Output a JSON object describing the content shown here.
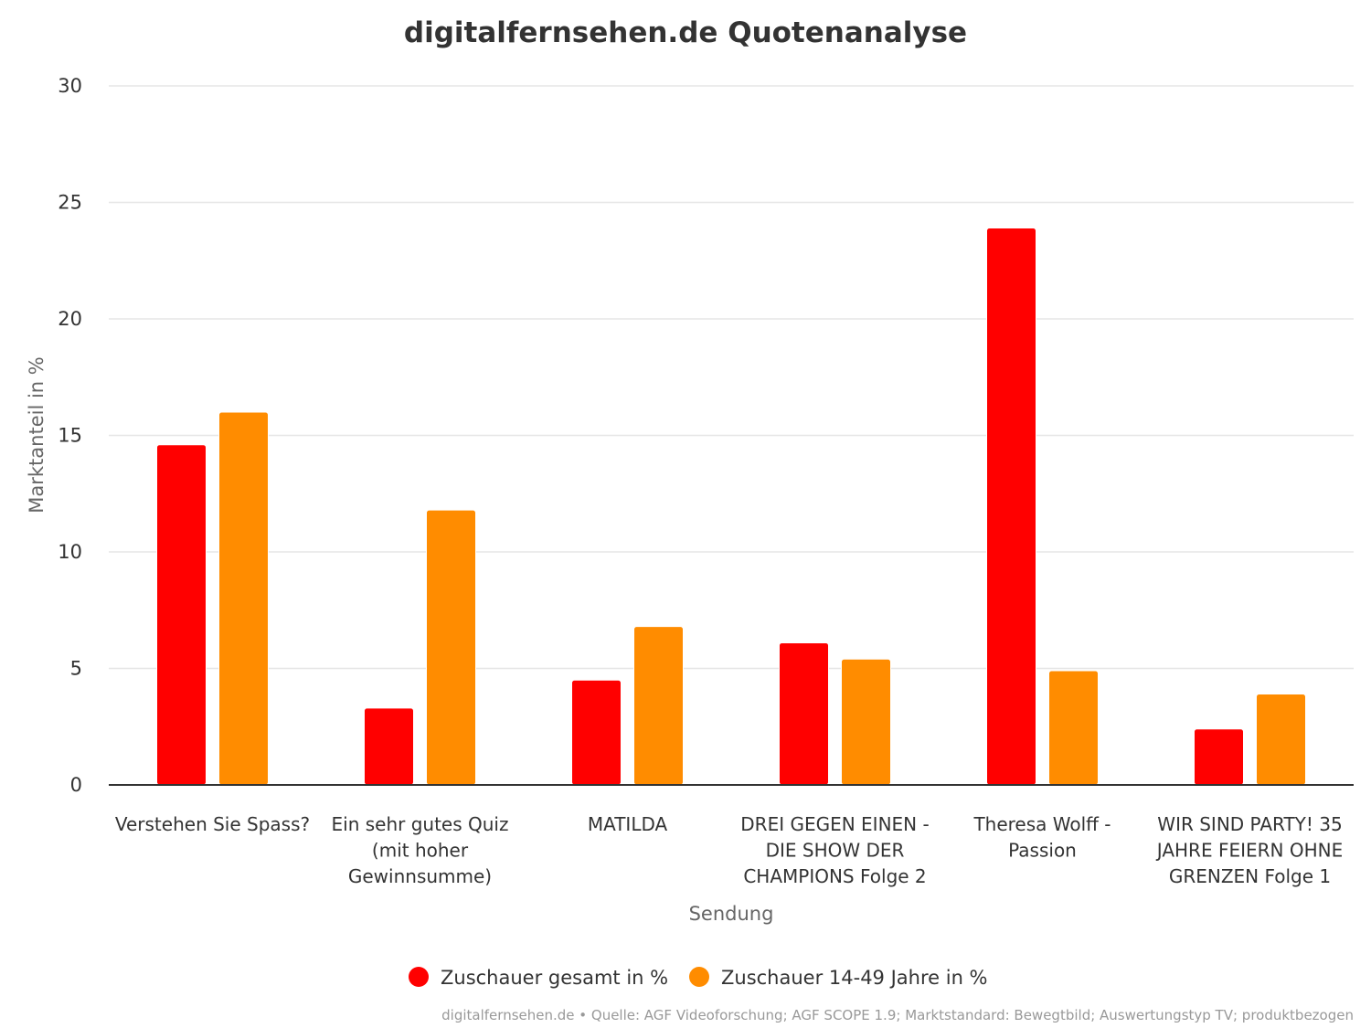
{
  "chart_data": {
    "type": "bar",
    "title": "digitalfernsehen.de Quotenanalyse",
    "xlabel": "Sendung",
    "ylabel": "Marktanteil in %",
    "ylim": [
      0,
      30
    ],
    "yticks": [
      0,
      5,
      10,
      15,
      20,
      25,
      30
    ],
    "grid": true,
    "legend_position": "bottom-center",
    "categories": [
      [
        "Verstehen Sie Spass?"
      ],
      [
        "Ein sehr gutes Quiz",
        "(mit hoher",
        "Gewinnsumme)"
      ],
      [
        "MATILDA"
      ],
      [
        "DREI GEGEN EINEN -",
        "DIE SHOW DER",
        "CHAMPIONS Folge 2"
      ],
      [
        "Theresa Wolff -",
        "Passion"
      ],
      [
        "WIR SIND PARTY! 35",
        "JAHRE FEIERN OHNE",
        "GRENZEN Folge 1"
      ]
    ],
    "series": [
      {
        "name": "Zuschauer gesamt in %",
        "color": "#ff0000",
        "values": [
          14.6,
          3.3,
          4.5,
          6.1,
          23.9,
          2.4
        ]
      },
      {
        "name": "Zuschauer 14-49 Jahre in %",
        "color": "#ff8c00",
        "values": [
          16.0,
          11.8,
          6.8,
          5.4,
          4.9,
          3.9
        ]
      }
    ],
    "credits": "digitalfernsehen.de • Quelle: AGF Videoforschung; AGF SCOPE 1.9; Marktstandard: Bewegtbild; Auswertungstyp TV; produktbezogen"
  }
}
